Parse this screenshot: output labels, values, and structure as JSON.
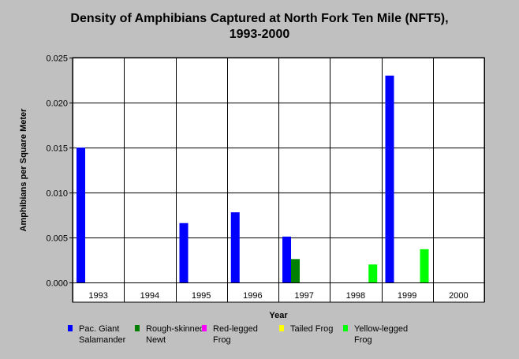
{
  "title_line1": "Density of Amphibians Captured at North Fork Ten Mile (NFT5),",
  "title_line2": "1993-2000",
  "chart_data": {
    "type": "bar",
    "categories": [
      "1993",
      "1994",
      "1995",
      "1996",
      "1997",
      "1998",
      "1999",
      "2000"
    ],
    "series": [
      {
        "name": "Pac. Giant Salamander",
        "name_lines": [
          "Pac. Giant",
          "Salamander"
        ],
        "color": "#0000ff",
        "values": [
          0.015,
          0,
          0.0066,
          0.0078,
          0.0051,
          0,
          0.023,
          0
        ]
      },
      {
        "name": "Rough-skinned Newt",
        "name_lines": [
          "Rough-skinned",
          "Newt"
        ],
        "color": "#008000",
        "values": [
          0,
          0,
          0,
          0,
          0.0026,
          0,
          0,
          0
        ]
      },
      {
        "name": "Red-legged Frog",
        "name_lines": [
          "Red-legged",
          "Frog"
        ],
        "color": "#ff00ff",
        "values": [
          0,
          0,
          0,
          0,
          0,
          0,
          0,
          0
        ]
      },
      {
        "name": "Tailed Frog",
        "name_lines": [
          "Tailed Frog",
          ""
        ],
        "color": "#ffff00",
        "values": [
          0,
          0,
          0,
          0,
          0,
          0,
          0,
          0
        ]
      },
      {
        "name": "Yellow-legged Frog",
        "name_lines": [
          "Yellow-legged",
          "Frog"
        ],
        "color": "#00ff00",
        "values": [
          0,
          0,
          0,
          0,
          0,
          0.002,
          0.0037,
          0
        ]
      }
    ],
    "xlabel": "Year",
    "ylabel": "Amphibians per Square Meter",
    "ylim": [
      0,
      0.025
    ],
    "yticks": [
      "0.000",
      "0.005",
      "0.010",
      "0.015",
      "0.020",
      "0.025"
    ],
    "grid": true,
    "legend_position": "bottom"
  }
}
